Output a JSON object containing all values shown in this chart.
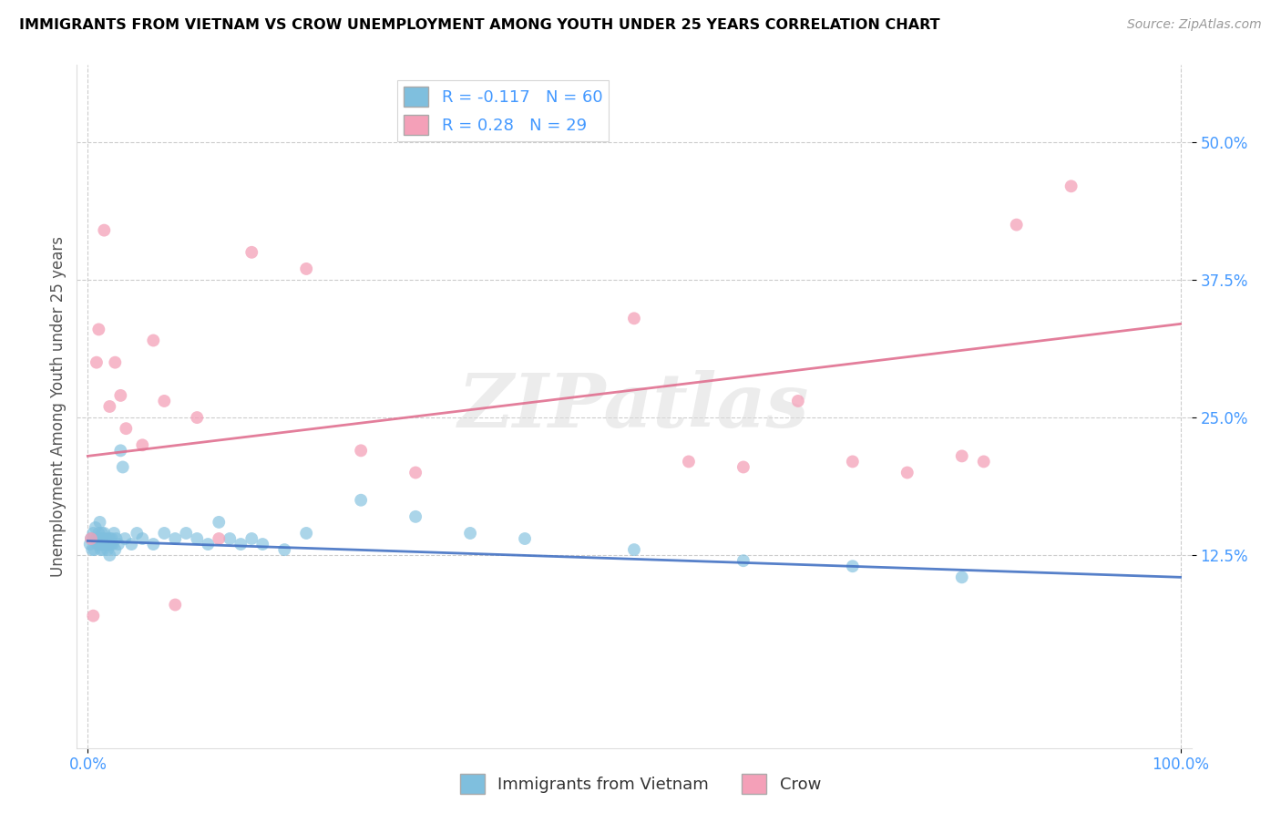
{
  "title": "IMMIGRANTS FROM VIETNAM VS CROW UNEMPLOYMENT AMONG YOUTH UNDER 25 YEARS CORRELATION CHART",
  "source": "Source: ZipAtlas.com",
  "ylabel": "Unemployment Among Youth under 25 years",
  "legend_label1": "Immigrants from Vietnam",
  "legend_label2": "Crow",
  "R1": -0.117,
  "N1": 60,
  "R2": 0.28,
  "N2": 29,
  "color1": "#7fbfde",
  "color2": "#f4a0b8",
  "line_color1": "#4472c4",
  "line_color2": "#e07090",
  "watermark": "ZIPatlas",
  "blue_x": [
    0.2,
    0.3,
    0.4,
    0.5,
    0.6,
    0.7,
    0.8,
    0.9,
    1.0,
    1.0,
    1.1,
    1.1,
    1.2,
    1.2,
    1.3,
    1.3,
    1.4,
    1.4,
    1.5,
    1.5,
    1.6,
    1.7,
    1.8,
    1.9,
    2.0,
    2.0,
    2.1,
    2.2,
    2.3,
    2.4,
    2.5,
    2.6,
    2.8,
    3.0,
    3.2,
    3.4,
    4.0,
    4.5,
    5.0,
    6.0,
    7.0,
    8.0,
    9.0,
    10.0,
    11.0,
    12.0,
    13.0,
    14.0,
    15.0,
    16.0,
    18.0,
    20.0,
    25.0,
    30.0,
    35.0,
    40.0,
    50.0,
    60.0,
    70.0,
    80.0
  ],
  "blue_y": [
    13.5,
    14.0,
    13.0,
    14.5,
    13.0,
    15.0,
    14.0,
    13.5,
    14.0,
    14.5,
    15.5,
    13.5,
    13.0,
    14.0,
    13.5,
    14.5,
    14.0,
    13.0,
    14.5,
    13.5,
    13.5,
    14.0,
    13.0,
    13.5,
    14.0,
    12.5,
    13.5,
    14.0,
    13.5,
    14.5,
    13.0,
    14.0,
    13.5,
    22.0,
    20.5,
    14.0,
    13.5,
    14.5,
    14.0,
    13.5,
    14.5,
    14.0,
    14.5,
    14.0,
    13.5,
    15.5,
    14.0,
    13.5,
    14.0,
    13.5,
    13.0,
    14.5,
    17.5,
    16.0,
    14.5,
    14.0,
    13.0,
    12.0,
    11.5,
    10.5
  ],
  "pink_x": [
    0.3,
    0.5,
    0.8,
    1.0,
    1.5,
    2.0,
    2.5,
    3.0,
    3.5,
    5.0,
    6.0,
    7.0,
    8.0,
    10.0,
    12.0,
    15.0,
    20.0,
    25.0,
    30.0,
    50.0,
    55.0,
    60.0,
    65.0,
    70.0,
    75.0,
    80.0,
    82.0,
    85.0,
    90.0
  ],
  "pink_y": [
    14.0,
    7.0,
    30.0,
    33.0,
    42.0,
    26.0,
    30.0,
    27.0,
    24.0,
    22.5,
    32.0,
    26.5,
    8.0,
    25.0,
    14.0,
    40.0,
    38.5,
    22.0,
    20.0,
    34.0,
    21.0,
    20.5,
    26.5,
    21.0,
    20.0,
    21.5,
    21.0,
    42.5,
    46.0
  ],
  "blue_line_x": [
    0,
    100
  ],
  "blue_line_y": [
    13.8,
    10.5
  ],
  "pink_line_x": [
    0,
    100
  ],
  "pink_line_y": [
    21.5,
    33.5
  ],
  "xlim": [
    -1,
    101
  ],
  "ylim": [
    -5,
    57
  ],
  "ytick_vals": [
    12.5,
    25.0,
    37.5,
    50.0
  ],
  "ytick_labels": [
    "12.5%",
    "25.0%",
    "37.5%",
    "50.0%"
  ],
  "xtick_vals": [
    0,
    100
  ],
  "xtick_labels": [
    "0.0%",
    "100.0%"
  ],
  "grid_color": "#cccccc",
  "background_color": "#ffffff"
}
